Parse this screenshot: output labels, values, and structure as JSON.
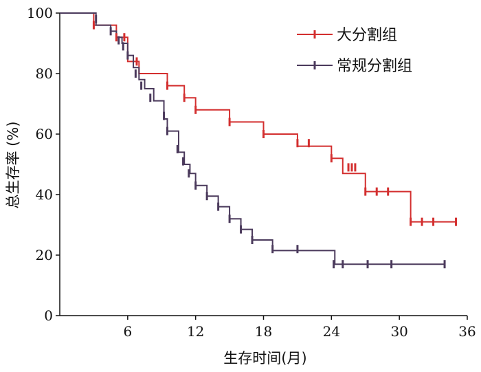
{
  "chart_data": {
    "type": "line",
    "subtype": "kaplan-meier step curve with censor marks",
    "title": "",
    "xlabel": "生存时间(月)",
    "ylabel": "总生存率 (%)",
    "xlim": [
      0,
      36
    ],
    "ylim": [
      0,
      100
    ],
    "x_ticks": [
      6,
      12,
      18,
      24,
      30,
      36
    ],
    "y_ticks": [
      0,
      20,
      40,
      60,
      80,
      100
    ],
    "grid": false,
    "legend_position": "top-right",
    "series": [
      {
        "name": "大分割组",
        "color": "#d32f2f",
        "steps": [
          [
            0,
            100
          ],
          [
            3,
            96
          ],
          [
            5,
            92
          ],
          [
            6,
            84
          ],
          [
            7,
            80
          ],
          [
            9.5,
            76
          ],
          [
            11,
            72
          ],
          [
            12,
            68
          ],
          [
            15,
            64
          ],
          [
            18,
            60
          ],
          [
            21,
            56
          ],
          [
            24,
            52
          ],
          [
            25,
            47
          ],
          [
            27,
            41
          ],
          [
            31,
            31
          ],
          [
            35,
            31
          ]
        ],
        "censored": [
          [
            3,
            96
          ],
          [
            5,
            92
          ],
          [
            5.7,
            92
          ],
          [
            6.8,
            84
          ],
          [
            9.5,
            76
          ],
          [
            11,
            72
          ],
          [
            12,
            68
          ],
          [
            15,
            64
          ],
          [
            18,
            60
          ],
          [
            21,
            57
          ],
          [
            22,
            57
          ],
          [
            24,
            52
          ],
          [
            25.5,
            49
          ],
          [
            25.8,
            49
          ],
          [
            26.1,
            49
          ],
          [
            27,
            41
          ],
          [
            28,
            41
          ],
          [
            29,
            41
          ],
          [
            31,
            31
          ],
          [
            32,
            31
          ],
          [
            33,
            31
          ],
          [
            35,
            31
          ]
        ]
      },
      {
        "name": "常规分割组",
        "color": "#4b3a5c",
        "steps": [
          [
            0,
            100
          ],
          [
            3.2,
            96
          ],
          [
            4.5,
            94
          ],
          [
            5,
            92
          ],
          [
            5.5,
            90
          ],
          [
            6,
            86
          ],
          [
            6.5,
            82
          ],
          [
            7,
            78
          ],
          [
            7.5,
            75
          ],
          [
            8.3,
            71
          ],
          [
            9.2,
            65
          ],
          [
            9.5,
            61
          ],
          [
            10.5,
            54
          ],
          [
            11,
            50
          ],
          [
            11.5,
            47
          ],
          [
            12,
            43
          ],
          [
            13,
            39.5
          ],
          [
            14,
            36
          ],
          [
            15,
            32
          ],
          [
            16,
            28.5
          ],
          [
            17,
            25
          ],
          [
            18.8,
            21.5
          ],
          [
            24.3,
            17
          ],
          [
            34,
            17
          ]
        ],
        "censored": [
          [
            3.2,
            98
          ],
          [
            4.5,
            94
          ],
          [
            5.2,
            91
          ],
          [
            5.6,
            89
          ],
          [
            6,
            86
          ],
          [
            6.7,
            80
          ],
          [
            7.2,
            76
          ],
          [
            8,
            72
          ],
          [
            9.2,
            66
          ],
          [
            9.5,
            61
          ],
          [
            10.4,
            55
          ],
          [
            10.9,
            51
          ],
          [
            11.4,
            47
          ],
          [
            12,
            43
          ],
          [
            13,
            39.5
          ],
          [
            14,
            36
          ],
          [
            15,
            32
          ],
          [
            16,
            28.5
          ],
          [
            17,
            25
          ],
          [
            18.8,
            22
          ],
          [
            21,
            22
          ],
          [
            24.2,
            17
          ],
          [
            25,
            17
          ],
          [
            27.2,
            17
          ],
          [
            29.3,
            17
          ],
          [
            34,
            17
          ]
        ]
      }
    ]
  }
}
